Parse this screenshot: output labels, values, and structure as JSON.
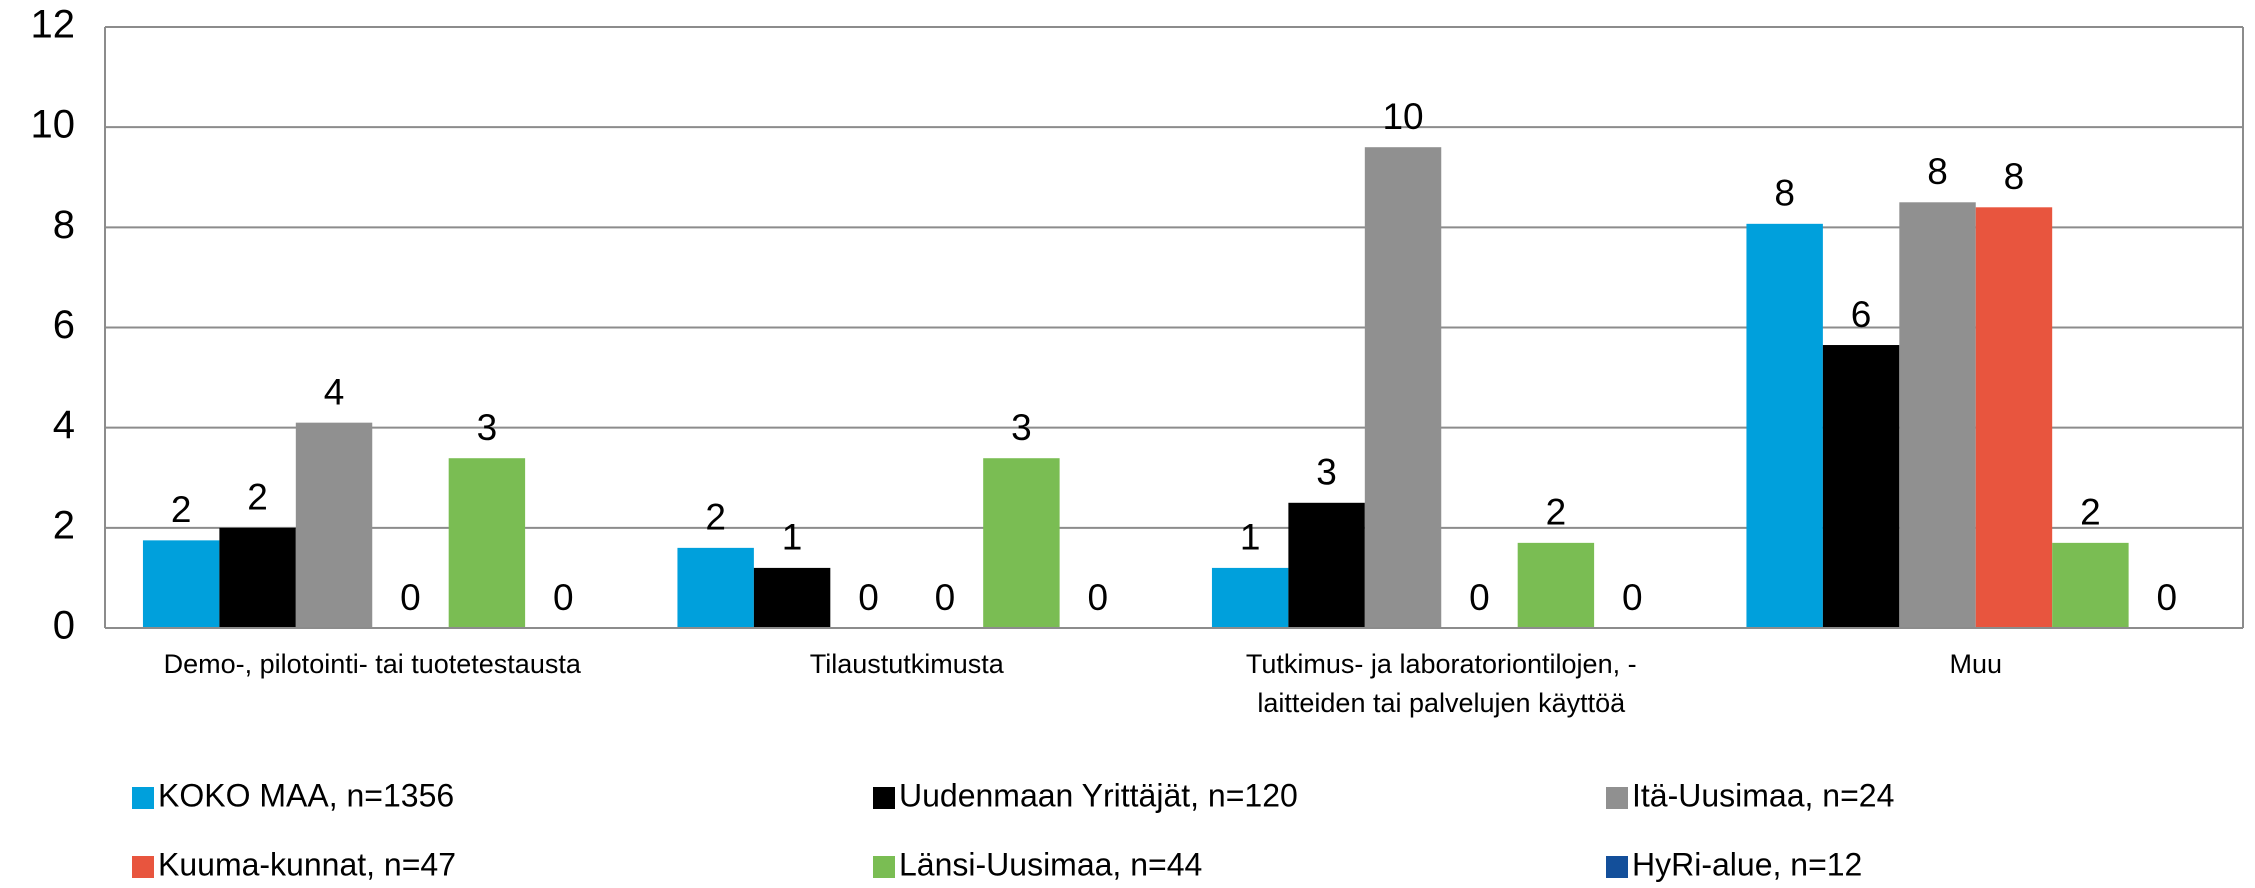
{
  "chart_data": {
    "type": "bar",
    "categories": [
      "Demo-, pilotointi- tai tuotetestausta",
      "Tilaustutkimusta",
      "Tutkimus- ja laboratoriontilojen, -\nlaitteiden tai palvelujen käyttöä",
      "Muu"
    ],
    "series": [
      {
        "name": "KOKO MAA, n=1356",
        "color": "#00a0dc",
        "values": [
          1.75,
          1.6,
          1.2,
          8.07
        ],
        "value_labels": [
          "2",
          "2",
          "1",
          "8"
        ]
      },
      {
        "name": "Uudenmaan Yrittäjät, n=120",
        "color": "#000000",
        "values": [
          2.0,
          1.2,
          2.5,
          5.65
        ],
        "value_labels": [
          "2",
          "1",
          "3",
          "6"
        ]
      },
      {
        "name": "Itä-Uusimaa, n=24",
        "color": "#909090",
        "values": [
          4.1,
          0,
          9.6,
          8.5
        ],
        "value_labels": [
          "4",
          "0",
          "10",
          "8"
        ]
      },
      {
        "name": "Kuuma-kunnat, n=47",
        "color": "#e8553e",
        "values": [
          0,
          0,
          0,
          8.4
        ],
        "value_labels": [
          "0",
          "0",
          "0",
          "8"
        ]
      },
      {
        "name": "Länsi-Uusimaa, n=44",
        "color": "#7abd53",
        "values": [
          3.39,
          3.39,
          1.7,
          1.7
        ],
        "value_labels": [
          "3",
          "3",
          "2",
          "2"
        ]
      },
      {
        "name": "HyRi-alue, n=12",
        "color": "#134f9a",
        "values": [
          0,
          0,
          0,
          0
        ],
        "value_labels": [
          "0",
          "0",
          "0",
          "0"
        ]
      }
    ],
    "ylim": [
      0,
      12
    ],
    "yticks": [
      0,
      2,
      4,
      6,
      8,
      10,
      12
    ],
    "grid": true,
    "legend": "bottom"
  }
}
